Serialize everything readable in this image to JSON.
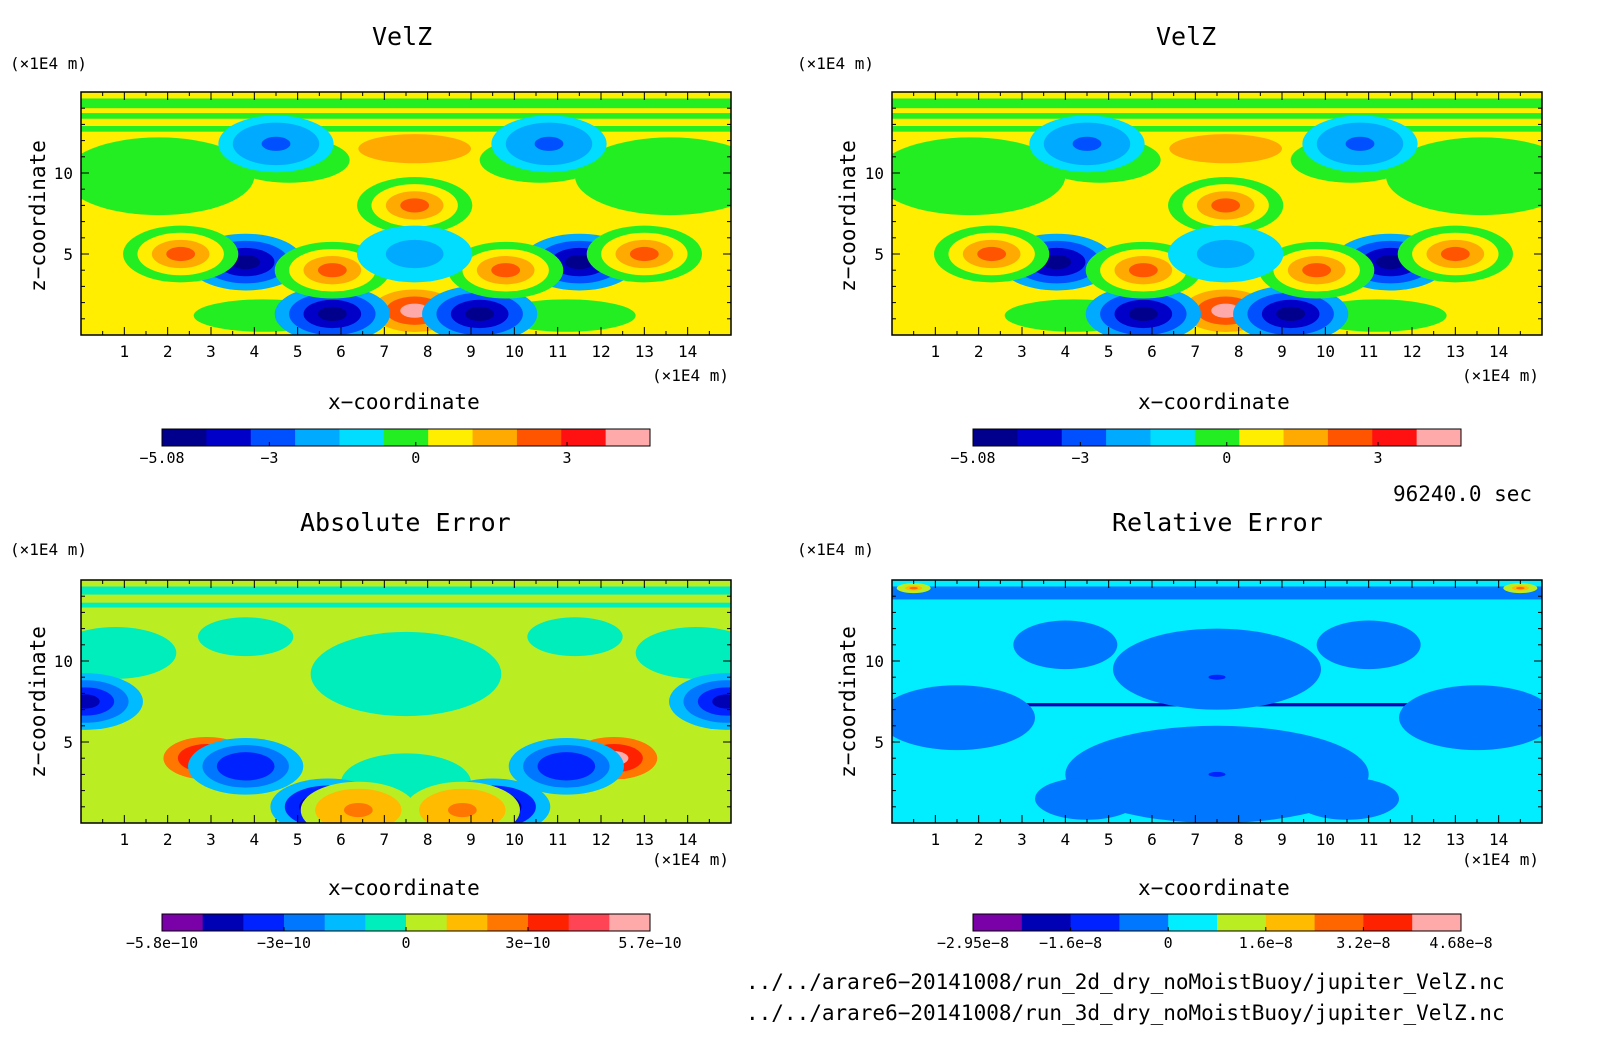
{
  "panels": [
    {
      "id": "velz-3d",
      "title": "VelZ",
      "z_unit": "(×1E4 m)",
      "x_unit": "(×1E4 m)",
      "xlabel": "x−coordinate",
      "ylabel": "z−coordinate",
      "colorbar": {
        "colors": [
          "#00008c",
          "#0000c8",
          "#0050ff",
          "#00aaff",
          "#00ddff",
          "#22ee22",
          "#ffee00",
          "#ffaa00",
          "#ff5500",
          "#ff1111",
          "#ffaaaa"
        ],
        "labels": [
          "−5.08",
          "−3",
          "0",
          "3"
        ]
      }
    },
    {
      "id": "velz-2d",
      "title": "VelZ",
      "z_unit": "(×1E4 m)",
      "x_unit": "(×1E4 m)",
      "xlabel": "x−coordinate",
      "ylabel": "z−coordinate",
      "colorbar": {
        "colors": [
          "#00008c",
          "#0000c8",
          "#0050ff",
          "#00aaff",
          "#00ddff",
          "#22ee22",
          "#ffee00",
          "#ffaa00",
          "#ff5500",
          "#ff1111",
          "#ffaaaa"
        ],
        "labels": [
          "−5.08",
          "−3",
          "0",
          "3"
        ]
      }
    },
    {
      "id": "abs-error",
      "title": "Absolute Error",
      "z_unit": "(×1E4 m)",
      "x_unit": "(×1E4 m)",
      "xlabel": "x−coordinate",
      "ylabel": "z−coordinate",
      "colorbar": {
        "colors": [
          "#7a00a8",
          "#0000b4",
          "#0022ff",
          "#0077ff",
          "#00bbff",
          "#00eebb",
          "#bbee22",
          "#ffbb00",
          "#ff7700",
          "#ff2200",
          "#ff4455",
          "#ffaaaa"
        ],
        "labels": [
          "−5.8e−10",
          "−3e−10",
          "0",
          "3e−10",
          "5.7e−10"
        ]
      }
    },
    {
      "id": "rel-error",
      "title": "Relative Error",
      "z_unit": "(×1E4 m)",
      "x_unit": "(×1E4 m)",
      "xlabel": "x−coordinate",
      "ylabel": "z−coordinate",
      "colorbar": {
        "colors": [
          "#7a00a8",
          "#0000b4",
          "#0022ff",
          "#0077ff",
          "#00eeff",
          "#bbee22",
          "#ffbb00",
          "#ff6600",
          "#ff2200",
          "#ffaaaa"
        ],
        "labels": [
          "−2.95e−8",
          "−1.6e−8",
          "0",
          "1.6e−8",
          "3.2e−8",
          "4.68e−8"
        ]
      }
    }
  ],
  "time_label": "96240.0 sec",
  "files": [
    "../../arare6−20141008/run_2d_dry_noMoistBuoy/jupiter_VelZ.nc",
    "../../arare6−20141008/run_3d_dry_noMoistBuoy/jupiter_VelZ.nc"
  ],
  "chart_data": [
    {
      "type": "heatmap",
      "title": "VelZ",
      "xlabel": "x−coordinate",
      "ylabel": "z−coordinate",
      "x_ticks": [
        1,
        2,
        3,
        4,
        5,
        6,
        7,
        8,
        9,
        10,
        11,
        12,
        13,
        14
      ],
      "y_ticks": [
        5,
        10
      ],
      "xlim": [
        0,
        15
      ],
      "ylim": [
        0,
        15
      ],
      "colorbar_ticks": [
        "−5.08",
        "−3",
        "0",
        "3"
      ],
      "features": [
        {
          "x": 7.7,
          "z": 1.5,
          "value": 5.0
        },
        {
          "x": 5.8,
          "z": 1.3,
          "value": -5.0
        },
        {
          "x": 9.2,
          "z": 1.3,
          "value": -5.0
        },
        {
          "x": 3.8,
          "z": 4.5,
          "value": -4.5
        },
        {
          "x": 11.5,
          "z": 4.5,
          "value": -4.5
        },
        {
          "x": 2.3,
          "z": 5.0,
          "value": 3.5
        },
        {
          "x": 13.0,
          "z": 5.0,
          "value": 3.5
        },
        {
          "x": 5.8,
          "z": 4.0,
          "value": 3.0
        },
        {
          "x": 9.8,
          "z": 4.0,
          "value": 3.0
        },
        {
          "x": 7.7,
          "z": 8.0,
          "value": 3.0
        },
        {
          "x": 7.7,
          "z": 5.0,
          "value": -1.5
        },
        {
          "x": 4.5,
          "z": 11.8,
          "value": -2.5
        },
        {
          "x": 10.8,
          "z": 11.8,
          "value": -2.5
        }
      ]
    },
    {
      "type": "heatmap",
      "title": "VelZ",
      "xlabel": "x−coordinate",
      "ylabel": "z−coordinate",
      "x_ticks": [
        1,
        2,
        3,
        4,
        5,
        6,
        7,
        8,
        9,
        10,
        11,
        12,
        13,
        14
      ],
      "y_ticks": [
        5,
        10
      ],
      "xlim": [
        0,
        15
      ],
      "ylim": [
        0,
        15
      ],
      "colorbar_ticks": [
        "−5.08",
        "−3",
        "0",
        "3"
      ],
      "features": [
        {
          "x": 7.7,
          "z": 1.5,
          "value": 5.0
        },
        {
          "x": 5.8,
          "z": 1.3,
          "value": -5.0
        },
        {
          "x": 9.2,
          "z": 1.3,
          "value": -5.0
        },
        {
          "x": 3.8,
          "z": 4.5,
          "value": -4.5
        },
        {
          "x": 11.5,
          "z": 4.5,
          "value": -4.5
        },
        {
          "x": 2.3,
          "z": 5.0,
          "value": 3.5
        },
        {
          "x": 13.0,
          "z": 5.0,
          "value": 3.5
        },
        {
          "x": 5.8,
          "z": 4.0,
          "value": 3.0
        },
        {
          "x": 9.8,
          "z": 4.0,
          "value": 3.0
        },
        {
          "x": 7.7,
          "z": 8.0,
          "value": 3.0
        },
        {
          "x": 7.7,
          "z": 5.0,
          "value": -1.5
        },
        {
          "x": 4.5,
          "z": 11.8,
          "value": -2.5
        },
        {
          "x": 10.8,
          "z": 11.8,
          "value": -2.5
        }
      ]
    },
    {
      "type": "heatmap",
      "title": "Absolute Error",
      "xlabel": "x−coordinate",
      "ylabel": "z−coordinate",
      "x_ticks": [
        1,
        2,
        3,
        4,
        5,
        6,
        7,
        8,
        9,
        10,
        11,
        12,
        13,
        14
      ],
      "y_ticks": [
        5,
        10
      ],
      "xlim": [
        0,
        15
      ],
      "ylim": [
        0,
        15
      ],
      "colorbar_ticks": [
        "−5.8e−10",
        "−3e−10",
        "0",
        "3e−10",
        "5.7e−10"
      ],
      "features": [
        {
          "x": 5.7,
          "z": 1.0,
          "value": -5.5e-10
        },
        {
          "x": 9.5,
          "z": 1.0,
          "value": -5.5e-10
        },
        {
          "x": 2.9,
          "z": 4.0,
          "value": 5.5e-10
        },
        {
          "x": 12.3,
          "z": 4.0,
          "value": 5.5e-10
        },
        {
          "x": 3.8,
          "z": 3.5,
          "value": -3.5e-10
        },
        {
          "x": 11.2,
          "z": 3.5,
          "value": -3.5e-10
        },
        {
          "x": 6.4,
          "z": 0.8,
          "value": 3e-10
        },
        {
          "x": 8.8,
          "z": 0.8,
          "value": 3e-10
        },
        {
          "x": 0.1,
          "z": 7.5,
          "value": -4.5e-10
        },
        {
          "x": 14.9,
          "z": 7.5,
          "value": -4.5e-10
        }
      ]
    },
    {
      "type": "heatmap",
      "title": "Relative Error",
      "xlabel": "x−coordinate",
      "ylabel": "z−coordinate",
      "x_ticks": [
        1,
        2,
        3,
        4,
        5,
        6,
        7,
        8,
        9,
        10,
        11,
        12,
        13,
        14
      ],
      "y_ticks": [
        5,
        10
      ],
      "xlim": [
        0,
        15
      ],
      "ylim": [
        0,
        15
      ],
      "colorbar_ticks": [
        "−2.95e−8",
        "−1.6e−8",
        "0",
        "1.6e−8",
        "3.2e−8",
        "4.68e−8"
      ],
      "features": [
        {
          "x": 7.5,
          "z": 9.0,
          "value": -8e-09
        },
        {
          "x": 7.5,
          "z": 3.0,
          "value": -8e-09
        },
        {
          "x": 0.5,
          "z": 14.5,
          "value": 3e-08
        },
        {
          "x": 14.5,
          "z": 14.5,
          "value": 3e-08
        }
      ]
    }
  ]
}
